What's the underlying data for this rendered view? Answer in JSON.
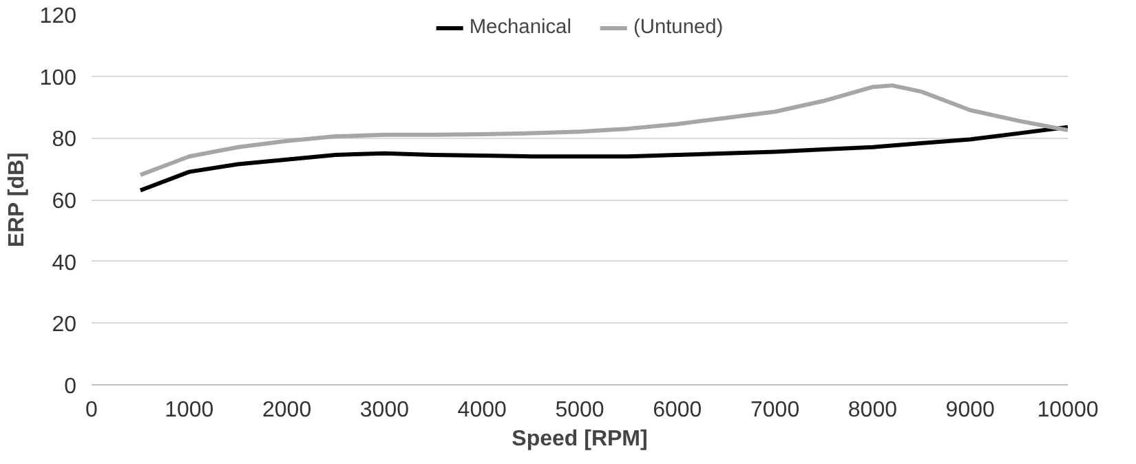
{
  "chart_data": {
    "type": "line",
    "xlabel": "Speed [RPM]",
    "ylabel": "ERP [dB]",
    "xlim": [
      0,
      10000
    ],
    "xticks": [
      0,
      1000,
      2000,
      3000,
      4000,
      5000,
      6000,
      7000,
      8000,
      9000,
      10000
    ],
    "ylim": [
      0,
      120
    ],
    "yticks": [
      0,
      20,
      40,
      60,
      80,
      100,
      120
    ],
    "grid": "y",
    "legend": "top",
    "marker": "none",
    "line_style": "solid",
    "series": [
      {
        "name": "Mechanical",
        "color": "#000000",
        "x": [
          500,
          1000,
          1500,
          2000,
          2500,
          3000,
          3500,
          4000,
          4500,
          5000,
          5500,
          6000,
          6500,
          7000,
          7500,
          8000,
          8500,
          9000,
          9500,
          10000
        ],
        "values": [
          63,
          69,
          71.5,
          73,
          74.5,
          75,
          74.5,
          74.3,
          74,
          74,
          74,
          74.5,
          75,
          75.5,
          76.3,
          77,
          78.3,
          79.5,
          81.5,
          83.5
        ]
      },
      {
        "name": "(Untuned)",
        "color": "#a6a6a6",
        "x": [
          500,
          1000,
          1500,
          2000,
          2500,
          3000,
          3500,
          4000,
          4500,
          5000,
          5500,
          6000,
          6500,
          7000,
          7500,
          8000,
          8200,
          8500,
          9000,
          9500,
          10000
        ],
        "values": [
          68,
          74,
          77,
          79,
          80.5,
          81,
          81,
          81.2,
          81.5,
          82,
          83,
          84.5,
          86.5,
          88.5,
          92,
          96.5,
          97,
          95,
          89,
          85.5,
          82.5
        ]
      }
    ]
  }
}
